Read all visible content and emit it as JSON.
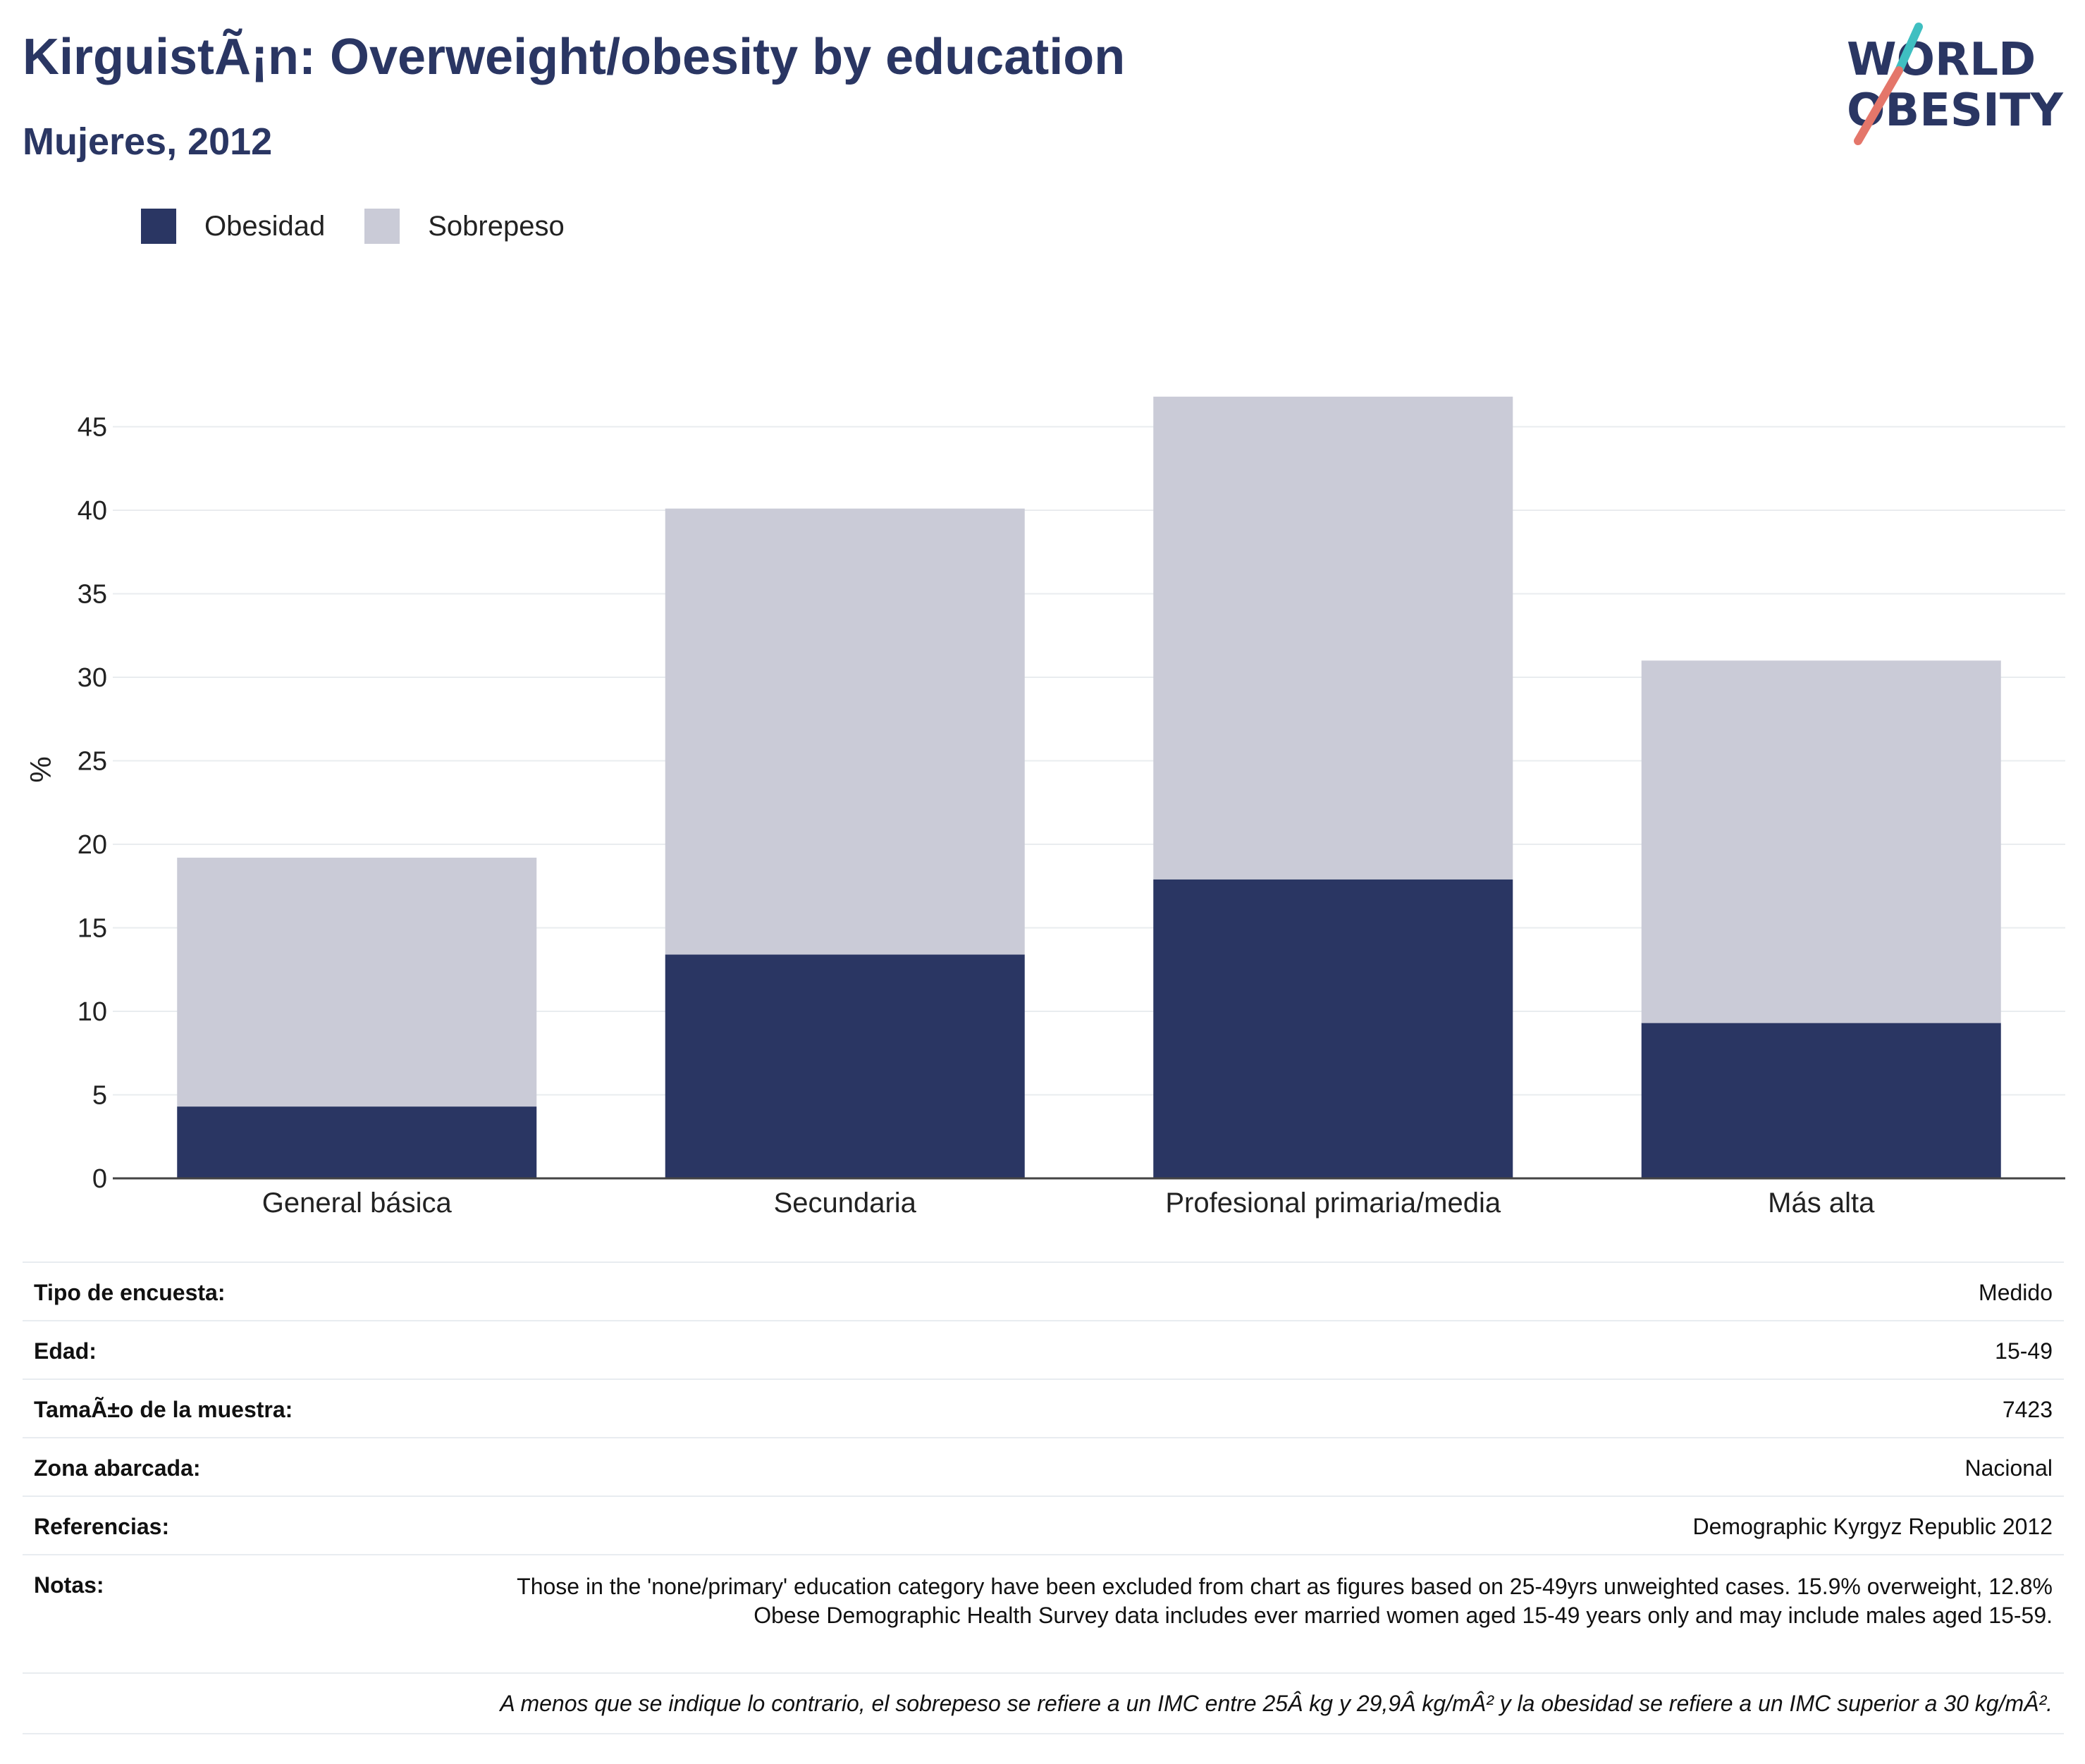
{
  "title": "KirguistÃ¡n: Overweight/obesity by education",
  "subtitle": "Mujeres, 2012",
  "logo": {
    "line1": "WORLD",
    "line2": "OBESITY"
  },
  "colors": {
    "obesidad": "#2a3663",
    "sobrepeso": "#cacbd7",
    "logo_teal": "#3fbfc1",
    "logo_coral": "#e4766a"
  },
  "chart_data": {
    "type": "bar",
    "stacked": true,
    "categories": [
      "General básica",
      "Secundaria",
      "Profesional primaria/media",
      "Más alta"
    ],
    "series": [
      {
        "name": "Obesidad",
        "values": [
          4.3,
          13.4,
          17.9,
          9.3
        ]
      },
      {
        "name": "Sobrepeso",
        "values": [
          14.9,
          26.7,
          28.9,
          21.7
        ]
      }
    ],
    "ylabel": "%",
    "ylim": [
      0,
      48
    ],
    "yticks": [
      0,
      5,
      10,
      15,
      20,
      25,
      30,
      35,
      40,
      45
    ],
    "grid": true,
    "legend_position": "top-left"
  },
  "info": {
    "rows": [
      {
        "key": "Tipo de encuesta:",
        "value": "Medido"
      },
      {
        "key": "Edad:",
        "value": "15-49"
      },
      {
        "key": "TamaÃ±o de la muestra:",
        "value": "7423"
      },
      {
        "key": "Zona abarcada:",
        "value": "Nacional"
      },
      {
        "key": "Referencias:",
        "value": "Demographic Kyrgyz Republic 2012"
      }
    ],
    "notes_key": "Notas:",
    "notes_value": "Those in the 'none/primary' education category have been excluded from chart as figures based on 25-49yrs unweighted cases. 15.9% overweight, 12.8% Obese Demographic Health Survey data includes ever married women aged 15-49 years only and may include males aged 15-59.",
    "footnote": "A menos que se indique lo contrario, el sobrepeso se refiere a un IMC entre 25Â kg y 29,9Â kg/mÂ² y la obesidad se refiere a un IMC superior a 30 kg/mÂ²."
  }
}
